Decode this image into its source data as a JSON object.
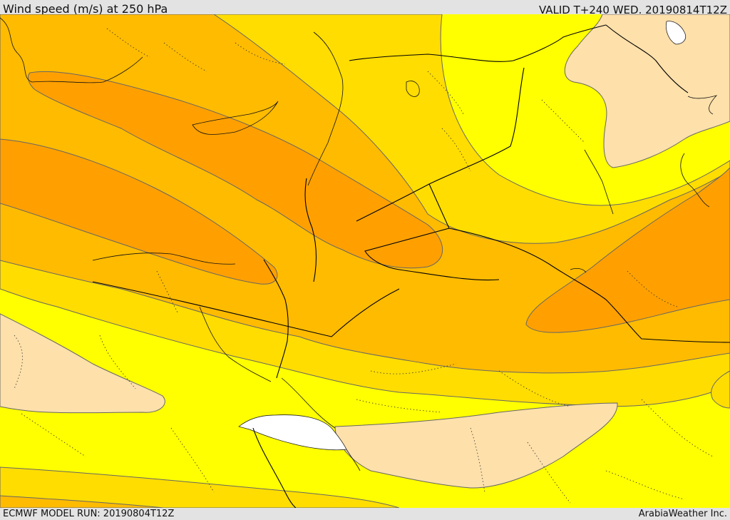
{
  "header": {
    "title": "Wind speed (m/s) at 250 hPa",
    "valid": "VALID T+240 WED. 20190814T12Z"
  },
  "footer": {
    "model_run": "ECMWF MODEL RUN: 20190804T12Z",
    "credit": "ArabiaWeather Inc."
  },
  "colors": {
    "sea_white": "#ffffff",
    "band_peach": "#fee0aa",
    "band_yellow": "#ffff00",
    "band_gold": "#ffdd00",
    "band_amber": "#ffbb00",
    "band_orange": "#ffa000",
    "border_line": "#000000",
    "contour_line": "#666666"
  }
}
